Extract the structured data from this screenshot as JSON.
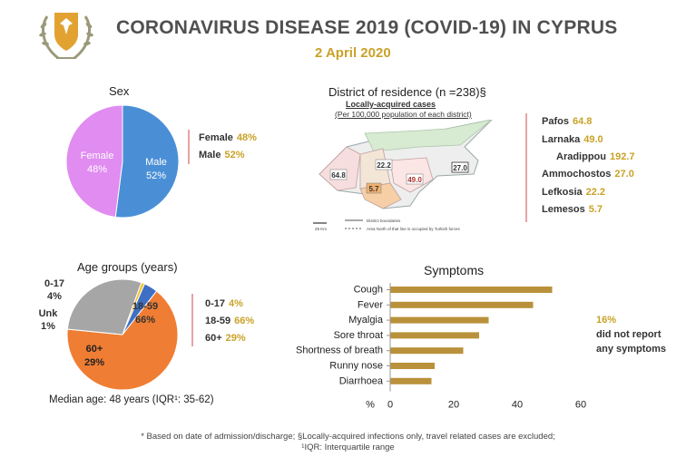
{
  "header": {
    "title": "CORONAVIRUS DISEASE 2019 (COVID-19) IN CYPRUS",
    "date": "2 April 2020",
    "emblem_icon": "cyprus-coat-of-arms-icon"
  },
  "colors": {
    "gold": "#c9a227",
    "male": "#4a8fd6",
    "female": "#e08cf0",
    "age_18_59": "#ef7d33",
    "age_60p": "#a6a6a6",
    "age_0_17": "#3f6fc4",
    "age_unk": "#f2c230",
    "bar": "#b9913a"
  },
  "sex": {
    "title": "Sex",
    "slice_labels": [
      {
        "name": "Female",
        "pct": "48%"
      },
      {
        "name": "Male",
        "pct": "52%"
      }
    ],
    "legend": [
      {
        "label": "Female",
        "value": "48%"
      },
      {
        "label": "Male",
        "value": "52%"
      }
    ]
  },
  "district": {
    "title": "District of residence (n =238)§",
    "map_caption_1": "Locally-acquired cases",
    "map_caption_2": "(Per 100,000 population of each district)",
    "map_labels": [
      "64.8",
      "22.2",
      "5.7",
      "49.0",
      "27.0"
    ],
    "map_legend_1": "District boundaries",
    "map_legend_2": "Area North of that line is occupied by Turkish forces",
    "map_scale": "25 Km",
    "legend": [
      {
        "label": "Pafos",
        "value": "64.8"
      },
      {
        "label": "Larnaka",
        "value": "49.0"
      },
      {
        "label": "Aradippou",
        "value": "192.7"
      },
      {
        "label": "Ammochostos",
        "value": "27.0"
      },
      {
        "label": "Lefkosia",
        "value": "22.2"
      },
      {
        "label": "Lemesos",
        "value": "5.7"
      }
    ]
  },
  "age": {
    "title": "Age groups (years)",
    "slice_labels": [
      {
        "name": "18-59",
        "pct": "66%"
      },
      {
        "name": "60+",
        "pct": "29%"
      },
      {
        "name": "Unk",
        "pct": "1%"
      },
      {
        "name": "0-17",
        "pct": "4%"
      }
    ],
    "legend": [
      {
        "label": "0-17",
        "value": "4%"
      },
      {
        "label": "18-59",
        "value": "66%"
      },
      {
        "label": "60+",
        "value": "29%"
      }
    ],
    "median": "Median age: 48 years (IQR¹: 35-62)"
  },
  "symptoms": {
    "title": "Symptoms",
    "axis_unit": "%",
    "note_pct": "16%",
    "note_line1": "did not report",
    "note_line2": "any symptoms"
  },
  "footer": {
    "line1": "* Based on date of admission/discharge; §Locally-acquired infections only, travel related cases are excluded;",
    "line2": "¹IQR: Interquartile range"
  },
  "chart_data": [
    {
      "type": "pie",
      "title": "Sex",
      "categories": [
        "Male",
        "Female"
      ],
      "values": [
        52,
        48
      ]
    },
    {
      "type": "pie",
      "title": "Age groups (years)",
      "categories": [
        "18-59",
        "60+",
        "Unk",
        "0-17"
      ],
      "values": [
        66,
        29,
        1,
        4
      ]
    },
    {
      "type": "table",
      "title": "District of residence (n =238)§",
      "categories": [
        "Pafos",
        "Larnaka",
        "Aradippou",
        "Ammochostos",
        "Lefkosia",
        "Lemesos"
      ],
      "values": [
        64.8,
        49.0,
        192.7,
        27.0,
        22.2,
        5.7
      ]
    },
    {
      "type": "bar",
      "orientation": "horizontal",
      "title": "Symptoms",
      "categories": [
        "Cough",
        "Fever",
        "Myalgia",
        "Sore throat",
        "Shortness of breath",
        "Runny nose",
        "Diarrhoea"
      ],
      "values": [
        51,
        45,
        31,
        28,
        23,
        14,
        13
      ],
      "xlabel": "%",
      "xlim": [
        0,
        60
      ],
      "xticks": [
        0,
        20,
        40,
        60
      ],
      "grid": false
    }
  ]
}
